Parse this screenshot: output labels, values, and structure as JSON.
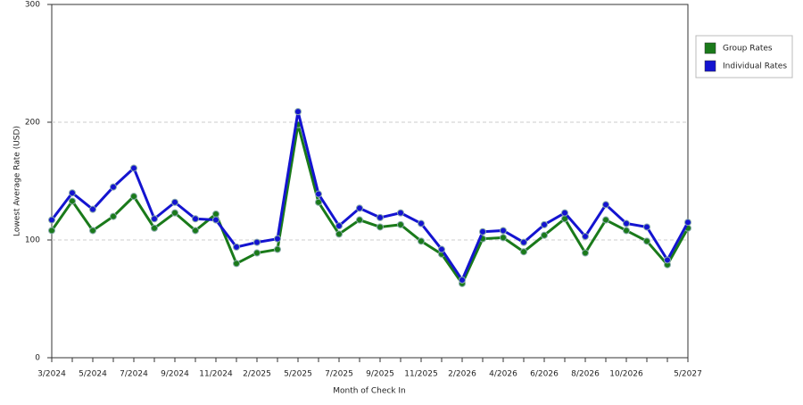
{
  "chart_data": {
    "type": "line",
    "x_label": "Month of Check In",
    "y_label": "Lowest Average Rate (USD)",
    "categories": [
      "3/2024",
      null,
      "5/2024",
      null,
      "7/2024",
      null,
      "9/2024",
      null,
      "11/2024",
      null,
      "2/2025",
      null,
      "5/2025",
      null,
      "7/2025",
      null,
      "9/2025",
      null,
      "11/2025",
      null,
      "2/2026",
      null,
      "4/2026",
      null,
      "6/2026",
      null,
      "8/2026",
      null,
      "10/2026",
      null,
      null,
      "5/2027"
    ],
    "series": [
      {
        "name": "Group Rates",
        "color": "#1a7a1a",
        "values": [
          108,
          133,
          108,
          120,
          137,
          110,
          123,
          108,
          122,
          80,
          89,
          92,
          198,
          132,
          105,
          117,
          111,
          113,
          99,
          88,
          63,
          101,
          102,
          90,
          104,
          118,
          89,
          117,
          108,
          99,
          79,
          110
        ]
      },
      {
        "name": "Individual Rates",
        "color": "#1414d0",
        "values": [
          117,
          140,
          126,
          145,
          161,
          118,
          132,
          118,
          117,
          94,
          98,
          101,
          209,
          139,
          112,
          127,
          119,
          123,
          114,
          92,
          66,
          107,
          108,
          98,
          113,
          123,
          103,
          130,
          114,
          111,
          83,
          115
        ]
      }
    ],
    "ylim": [
      0,
      300
    ],
    "yticks": [
      0,
      100,
      200,
      300
    ],
    "grid": true,
    "legend": "top-right"
  }
}
